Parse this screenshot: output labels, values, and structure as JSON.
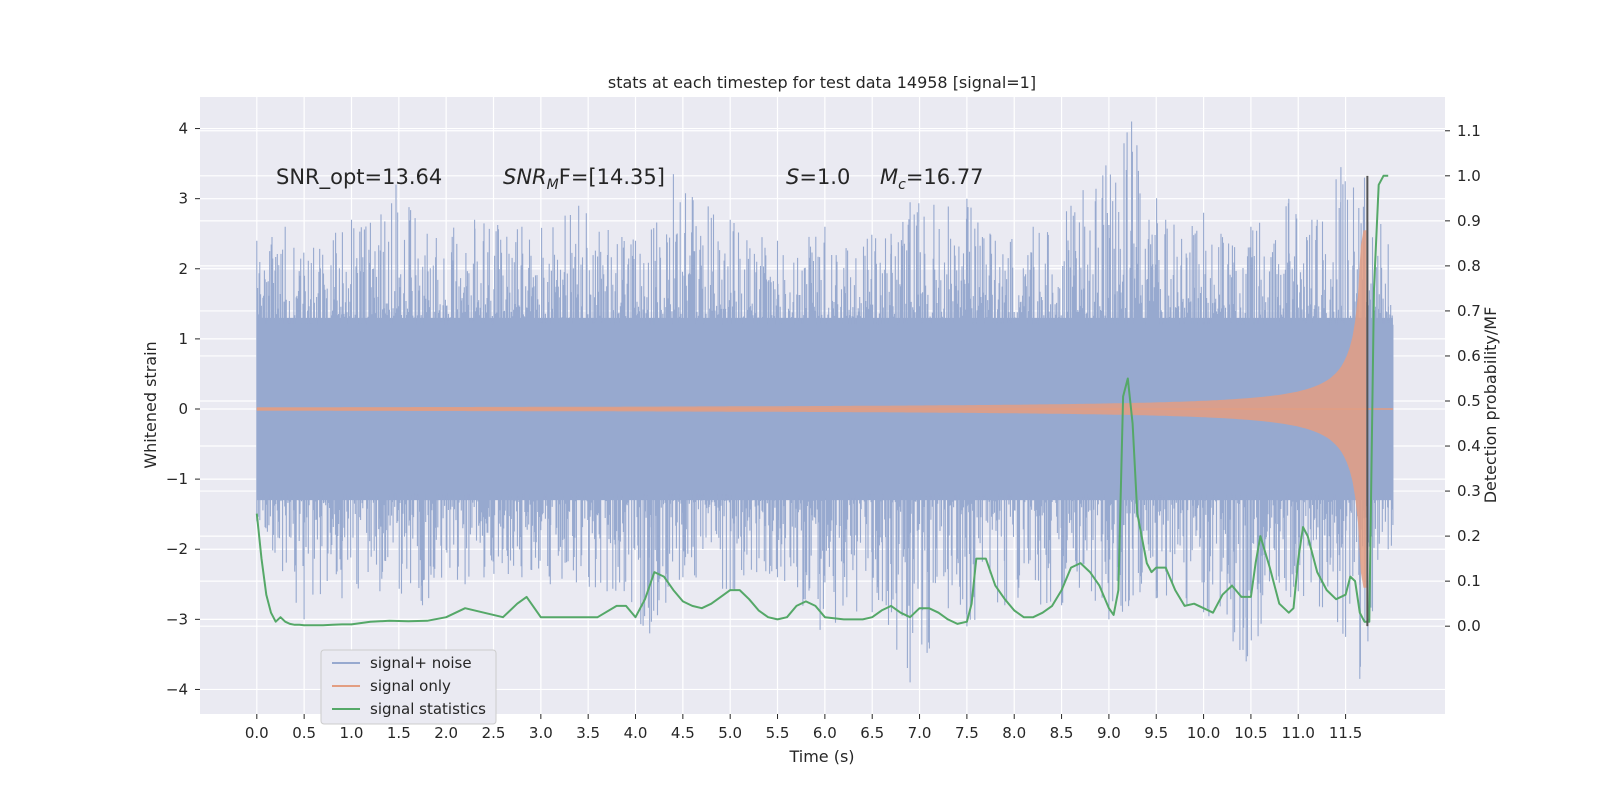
{
  "chart_data": {
    "type": "line",
    "title": "stats at each timestep for test data 14958 [signal=1]",
    "xlabel": "Time (s)",
    "ylabel": "Whitened strain",
    "ylabel_right": "Detection probability/MF",
    "xlim": [
      -0.6,
      12.55
    ],
    "ylim": [
      -4.35,
      4.45
    ],
    "ylim_right": [
      -0.195,
      1.175
    ],
    "x_ticks": [
      "0.0",
      "0.5",
      "1.0",
      "1.5",
      "2.0",
      "2.5",
      "3.0",
      "3.5",
      "4.0",
      "4.5",
      "5.0",
      "5.5",
      "6.0",
      "6.5",
      "7.0",
      "7.5",
      "8.0",
      "8.5",
      "9.0",
      "9.5",
      "10.0",
      "10.5",
      "11.0",
      "11.5"
    ],
    "y_ticks": [
      "4",
      "3",
      "2",
      "1",
      "0",
      "−1",
      "−2",
      "−3",
      "−4"
    ],
    "y_ticks_right": [
      "1.1",
      "1.0",
      "0.9",
      "0.8",
      "0.7",
      "0.6",
      "0.5",
      "0.4",
      "0.3",
      "0.2",
      "0.1",
      "0.0"
    ],
    "grid": true,
    "legend_position": "lower-left",
    "annotations": {
      "snr_opt": "SNR_opt=13.64",
      "snr_mf_sym": "SNR",
      "snr_mf_sub": "M",
      "snr_mf_rest": "F=[14.35]",
      "s_sym": "S",
      "s_rest": "=1.0",
      "mc_sym": "M",
      "mc_sub": "c",
      "mc_rest": "=16.77"
    },
    "series": [
      {
        "name": "signal+ noise",
        "color": "#97a9cf",
        "axis": "left",
        "duration": 12.0,
        "noise_band": [
          -1.3,
          1.3
        ],
        "peak_points": [
          [
            0.0,
            2.4
          ],
          [
            0.3,
            2.6
          ],
          [
            0.6,
            2.3
          ],
          [
            1.0,
            2.7
          ],
          [
            1.47,
            3.2
          ],
          [
            1.8,
            2.5
          ],
          [
            2.3,
            2.7
          ],
          [
            2.8,
            2.6
          ],
          [
            3.4,
            2.9
          ],
          [
            4.0,
            2.4
          ],
          [
            4.4,
            3.35
          ],
          [
            5.0,
            2.7
          ],
          [
            5.5,
            2.4
          ],
          [
            6.0,
            2.6
          ],
          [
            6.7,
            2.5
          ],
          [
            6.9,
            2.95
          ],
          [
            7.5,
            3.0
          ],
          [
            7.8,
            2.4
          ],
          [
            8.2,
            2.6
          ],
          [
            8.6,
            2.9
          ],
          [
            9.24,
            4.1
          ],
          [
            9.6,
            2.7
          ],
          [
            10.0,
            2.8
          ],
          [
            10.5,
            2.6
          ],
          [
            10.9,
            3.0
          ],
          [
            11.2,
            2.7
          ],
          [
            11.45,
            3.45
          ],
          [
            11.7,
            3.3
          ],
          [
            11.95,
            2.35
          ]
        ],
        "trough_points": [
          [
            0.0,
            -1.6
          ],
          [
            0.5,
            -3.0
          ],
          [
            0.9,
            -2.7
          ],
          [
            1.3,
            -2.6
          ],
          [
            1.75,
            -2.8
          ],
          [
            2.2,
            -2.5
          ],
          [
            2.8,
            -2.4
          ],
          [
            3.1,
            -2.5
          ],
          [
            3.7,
            -2.6
          ],
          [
            4.15,
            -3.2
          ],
          [
            4.5,
            -2.4
          ],
          [
            5.0,
            -2.6
          ],
          [
            5.5,
            -2.4
          ],
          [
            5.95,
            -3.15
          ],
          [
            6.5,
            -2.9
          ],
          [
            6.9,
            -3.9
          ],
          [
            7.5,
            -3.1
          ],
          [
            7.9,
            -2.8
          ],
          [
            8.5,
            -2.8
          ],
          [
            9.0,
            -3.0
          ],
          [
            9.5,
            -2.7
          ],
          [
            10.0,
            -2.9
          ],
          [
            10.45,
            -3.6
          ],
          [
            11.0,
            -2.6
          ],
          [
            11.5,
            -3.25
          ],
          [
            11.65,
            -3.85
          ],
          [
            11.95,
            -2.0
          ]
        ]
      },
      {
        "name": "signal only",
        "color": "#e39e82",
        "axis": "left",
        "chirp_end_time": 11.72,
        "chirp_peak_amplitude": 2.55
      },
      {
        "name": "signal statistics",
        "color": "#55a868",
        "axis": "right",
        "x": [
          0.0,
          0.05,
          0.1,
          0.15,
          0.2,
          0.25,
          0.3,
          0.35,
          0.4,
          0.45,
          0.5,
          0.6,
          0.7,
          0.8,
          0.9,
          1.0,
          1.2,
          1.4,
          1.6,
          1.8,
          2.0,
          2.2,
          2.4,
          2.6,
          2.75,
          2.85,
          3.0,
          3.2,
          3.4,
          3.6,
          3.8,
          3.9,
          4.0,
          4.1,
          4.2,
          4.3,
          4.4,
          4.5,
          4.6,
          4.7,
          4.8,
          4.9,
          5.0,
          5.1,
          5.2,
          5.3,
          5.4,
          5.5,
          5.6,
          5.7,
          5.8,
          5.9,
          6.0,
          6.2,
          6.4,
          6.5,
          6.6,
          6.7,
          6.8,
          6.9,
          7.0,
          7.1,
          7.2,
          7.3,
          7.4,
          7.5,
          7.55,
          7.6,
          7.7,
          7.8,
          7.9,
          8.0,
          8.1,
          8.2,
          8.3,
          8.4,
          8.5,
          8.6,
          8.7,
          8.8,
          8.9,
          9.0,
          9.05,
          9.1,
          9.15,
          9.2,
          9.25,
          9.3,
          9.4,
          9.45,
          9.5,
          9.6,
          9.7,
          9.8,
          9.9,
          10.0,
          10.1,
          10.2,
          10.3,
          10.4,
          10.5,
          10.55,
          10.6,
          10.7,
          10.8,
          10.9,
          10.95,
          11.0,
          11.05,
          11.1,
          11.2,
          11.3,
          11.4,
          11.5,
          11.55,
          11.6,
          11.65,
          11.7,
          11.75,
          11.8,
          11.85,
          11.9,
          11.95
        ],
        "y": [
          0.25,
          0.15,
          0.07,
          0.03,
          0.01,
          0.02,
          0.01,
          0.005,
          0.003,
          0.003,
          0.002,
          0.002,
          0.002,
          0.003,
          0.004,
          0.004,
          0.01,
          0.012,
          0.011,
          0.012,
          0.02,
          0.04,
          0.03,
          0.02,
          0.05,
          0.065,
          0.02,
          0.02,
          0.02,
          0.02,
          0.045,
          0.045,
          0.02,
          0.06,
          0.12,
          0.11,
          0.08,
          0.055,
          0.045,
          0.04,
          0.05,
          0.065,
          0.08,
          0.08,
          0.06,
          0.035,
          0.02,
          0.015,
          0.02,
          0.045,
          0.055,
          0.045,
          0.02,
          0.015,
          0.015,
          0.02,
          0.035,
          0.045,
          0.03,
          0.02,
          0.04,
          0.04,
          0.03,
          0.015,
          0.005,
          0.01,
          0.05,
          0.15,
          0.15,
          0.09,
          0.06,
          0.035,
          0.02,
          0.02,
          0.03,
          0.045,
          0.08,
          0.13,
          0.14,
          0.12,
          0.09,
          0.04,
          0.025,
          0.08,
          0.51,
          0.55,
          0.45,
          0.25,
          0.14,
          0.12,
          0.13,
          0.13,
          0.08,
          0.045,
          0.05,
          0.04,
          0.03,
          0.07,
          0.09,
          0.065,
          0.065,
          0.14,
          0.2,
          0.13,
          0.05,
          0.03,
          0.04,
          0.15,
          0.22,
          0.2,
          0.12,
          0.08,
          0.06,
          0.07,
          0.11,
          0.1,
          0.03,
          0.01,
          0.01,
          0.75,
          0.98,
          1.0,
          1.0
        ]
      }
    ],
    "marker_line_x": 11.73
  }
}
